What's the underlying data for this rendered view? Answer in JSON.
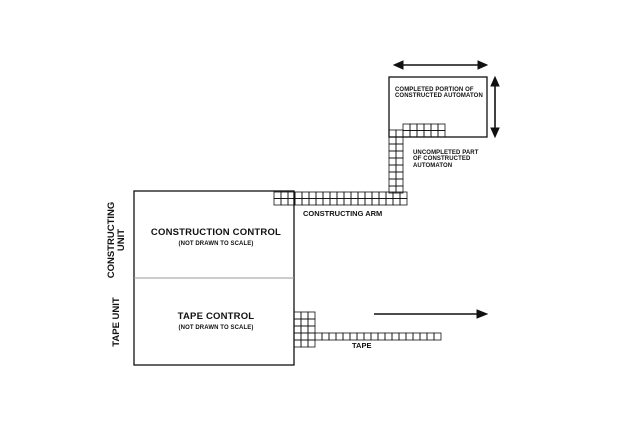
{
  "labels": {
    "completed_portion_line1": "COMPLETED PORTION OF",
    "completed_portion_line2": "CONSTRUCTED AUTOMATON",
    "uncompleted_line1": "UNCOMPLETED PART",
    "uncompleted_line2": "OF CONSTRUCTED",
    "uncompleted_line3": "AUTOMATON",
    "constructing_arm": "CONSTRUCTING ARM",
    "construction_control": "CONSTRUCTION CONTROL",
    "construction_control_note": "(NOT DRAWN TO SCALE)",
    "tape_control": "TAPE CONTROL",
    "tape_control_note": "(NOT DRAWN TO SCALE)",
    "tape": "TAPE",
    "constructing_unit_line1": "CONSTRUCTING",
    "constructing_unit_line2": "UNIT",
    "tape_unit": "TAPE UNIT"
  },
  "colors": {
    "ink": "#111111",
    "divider": "#999999",
    "background": "#ffffff"
  }
}
